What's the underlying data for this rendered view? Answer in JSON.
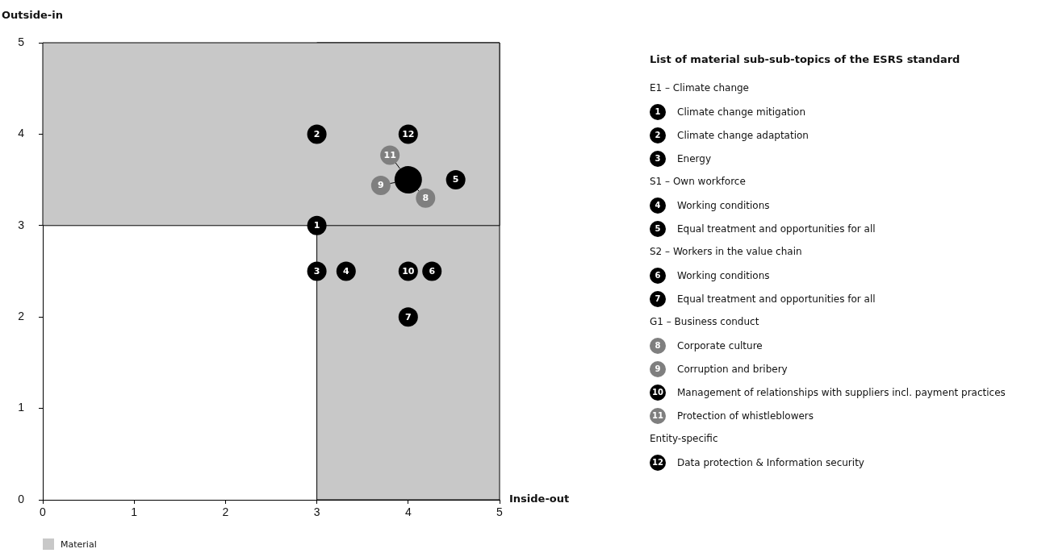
{
  "chart_data": {
    "type": "scatter",
    "xlabel": "Inside-out",
    "ylabel": "Outside-in",
    "legend_title": "List of material sub-sub-topics of the ESRS standard",
    "xlim": [
      0,
      5
    ],
    "ylim": [
      0,
      5
    ],
    "xticks": [
      0,
      1,
      2,
      3,
      4,
      5
    ],
    "yticks": [
      0,
      1,
      2,
      3,
      4,
      5
    ],
    "grid": false,
    "legend": "right",
    "marker": "circle",
    "annotations": [
      "E1 – Climate change",
      "S1 – Own workforce",
      "S2 – Workers in the value chain",
      "G1 – Business conduct",
      "Entity-specific",
      {
        "text": "1",
        "x": 3,
        "y": 3
      },
      {
        "text": "2",
        "x": 3,
        "y": 4
      },
      {
        "text": "3",
        "x": 3,
        "y": 2.5
      },
      {
        "text": "4",
        "x": 3.32,
        "y": 2.5
      },
      {
        "text": "5",
        "x": 4.52,
        "y": 3.5
      },
      {
        "text": "6",
        "x": 4.26,
        "y": 2.5
      },
      {
        "text": "7",
        "x": 4,
        "y": 2
      },
      {
        "text": "8",
        "x": 4.19,
        "y": 3.3
      },
      {
        "text": "9",
        "x": 3.7,
        "y": 3.44
      },
      {
        "text": "10",
        "x": 4,
        "y": 2.5
      },
      {
        "text": "11",
        "x": 3.8,
        "y": 3.77
      },
      {
        "text": "12",
        "x": 4,
        "y": 4
      }
    ],
    "bands": [
      {
        "axis": "x",
        "from": 3,
        "to": 5,
        "label": "Material",
        "color": "#c8c8c8"
      },
      {
        "axis": "y",
        "from": 3,
        "to": 5,
        "color": "#c8c8c8"
      }
    ],
    "series": [
      {
        "color": "#000000",
        "x": [
          4
        ],
        "values": [
          3.5
        ],
        "sizes": [
          1
        ]
      },
      {
        "name": "Climate change mitigation",
        "color": "#000000",
        "x": [
          3
        ],
        "values": [
          3
        ]
      },
      {
        "name": "Climate change adaptation",
        "color": "#000000",
        "x": [
          3
        ],
        "values": [
          4
        ]
      },
      {
        "name": "Energy",
        "color": "#000000",
        "x": [
          3
        ],
        "values": [
          2.5
        ]
      },
      {
        "name": "Working conditions",
        "color": "#000000",
        "x": [
          3.32
        ],
        "values": [
          2.5
        ]
      },
      {
        "name": "Equal treatment and opportunities for all",
        "color": "#000000",
        "x": [
          4.52
        ],
        "values": [
          3.5
        ]
      },
      {
        "name": "Working conditions",
        "color": "#000000",
        "x": [
          4.26
        ],
        "values": [
          2.5
        ]
      },
      {
        "name": "Equal treatment and opportunities for all",
        "color": "#000000",
        "x": [
          4
        ],
        "values": [
          2
        ]
      },
      {
        "name": "Corporate culture",
        "color": "#7f7f7f",
        "x": [
          4.19
        ],
        "values": [
          3.3
        ]
      },
      {
        "name": "Corruption and bribery",
        "color": "#7f7f7f",
        "x": [
          3.7
        ],
        "values": [
          3.44
        ]
      },
      {
        "name": "Management of relationships with suppliers incl. payment practices",
        "color": "#000000",
        "x": [
          4
        ],
        "values": [
          2.5
        ]
      },
      {
        "name": "Protection of whistleblowers",
        "color": "#7f7f7f",
        "x": [
          3.8
        ],
        "values": [
          3.77
        ]
      },
      {
        "name": "Data protection & Information security",
        "color": "#000000",
        "x": [
          4
        ],
        "values": [
          4
        ]
      }
    ]
  }
}
